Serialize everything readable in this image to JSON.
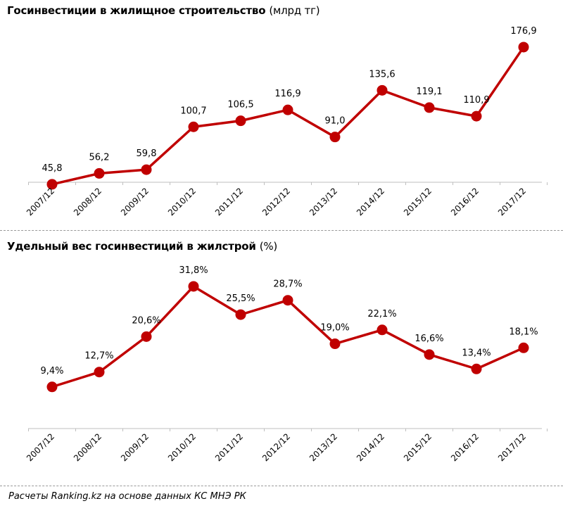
{
  "chart1_title": {
    "main": "Госинвестиции в жилищное строительство",
    "unit": "(млрд тг)"
  },
  "chart2_title": {
    "main": "Удельный вес госинвестиций в жилстрой",
    "unit": "(%)"
  },
  "source": "Расчеты Ranking.kz на основе данных  КС МНЭ РК",
  "colors": {
    "series": "#c00000",
    "axis": "#bfbfbf",
    "separator": "#9a9a9a"
  },
  "chart_data": [
    {
      "type": "line",
      "title": "Госинвестиции в жилищное строительство (млрд тг)",
      "categories": [
        "2007/12",
        "2008/12",
        "2009/12",
        "2010/12",
        "2011/12",
        "2012/12",
        "2013/12",
        "2014/12",
        "2015/12",
        "2016/12",
        "2017/12"
      ],
      "values": [
        45.8,
        56.2,
        59.8,
        100.7,
        106.5,
        116.9,
        91.0,
        135.6,
        119.1,
        110.9,
        176.9
      ],
      "labels": [
        "45,8",
        "56,2",
        "59,8",
        "100,7",
        "106,5",
        "116,9",
        "91,0",
        "135,6",
        "119,1",
        "110,9",
        "176,9"
      ],
      "ylim": [
        0,
        200
      ],
      "xlabel": "",
      "ylabel": ""
    },
    {
      "type": "line",
      "title": "Удельный вес госинвестиций в жилстрой (%)",
      "categories": [
        "2007/12",
        "2008/12",
        "2009/12",
        "2010/12",
        "2011/12",
        "2012/12",
        "2013/12",
        "2014/12",
        "2015/12",
        "2016/12",
        "2017/12"
      ],
      "values": [
        9.4,
        12.7,
        20.6,
        31.8,
        25.5,
        28.7,
        19.0,
        22.1,
        16.6,
        13.4,
        18.1
      ],
      "labels": [
        "9,4%",
        "12,7%",
        "20,6%",
        "31,8%",
        "25,5%",
        "28,7%",
        "19,0%",
        "22,1%",
        "16,6%",
        "13,4%",
        "18,1%"
      ],
      "ylim": [
        0,
        36
      ],
      "xlabel": "",
      "ylabel": ""
    }
  ]
}
